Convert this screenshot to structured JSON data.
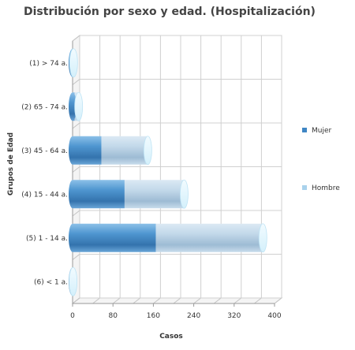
{
  "chart_data": {
    "type": "bar",
    "orientation": "horizontal",
    "stacked": true,
    "style": "3d-cylinder",
    "title": "Distribución por sexo y edad. (Hospitalización)",
    "xlabel": "Casos",
    "ylabel": "Grupos de Edad",
    "xlim": [
      0,
      400
    ],
    "xticks": [
      "0",
      "80",
      "160",
      "240",
      "320",
      "400"
    ],
    "grid": true,
    "legend_position": "right",
    "categories": [
      "(1) > 74 a.",
      "(2) 65 - 74 a.",
      "(3) 45 - 64 a.",
      "(4) 15 - 44 a.",
      "(5) 1 - 14 a.",
      "(6) < 1 a."
    ],
    "series": [
      {
        "name": "Mujer",
        "color": "#3f86c4",
        "values": [
          2,
          4,
          57,
          103,
          165,
          1
        ]
      },
      {
        "name": "Hombre",
        "color": "#b8d2e6",
        "values": [
          0,
          8,
          92,
          118,
          212,
          0
        ]
      }
    ]
  }
}
